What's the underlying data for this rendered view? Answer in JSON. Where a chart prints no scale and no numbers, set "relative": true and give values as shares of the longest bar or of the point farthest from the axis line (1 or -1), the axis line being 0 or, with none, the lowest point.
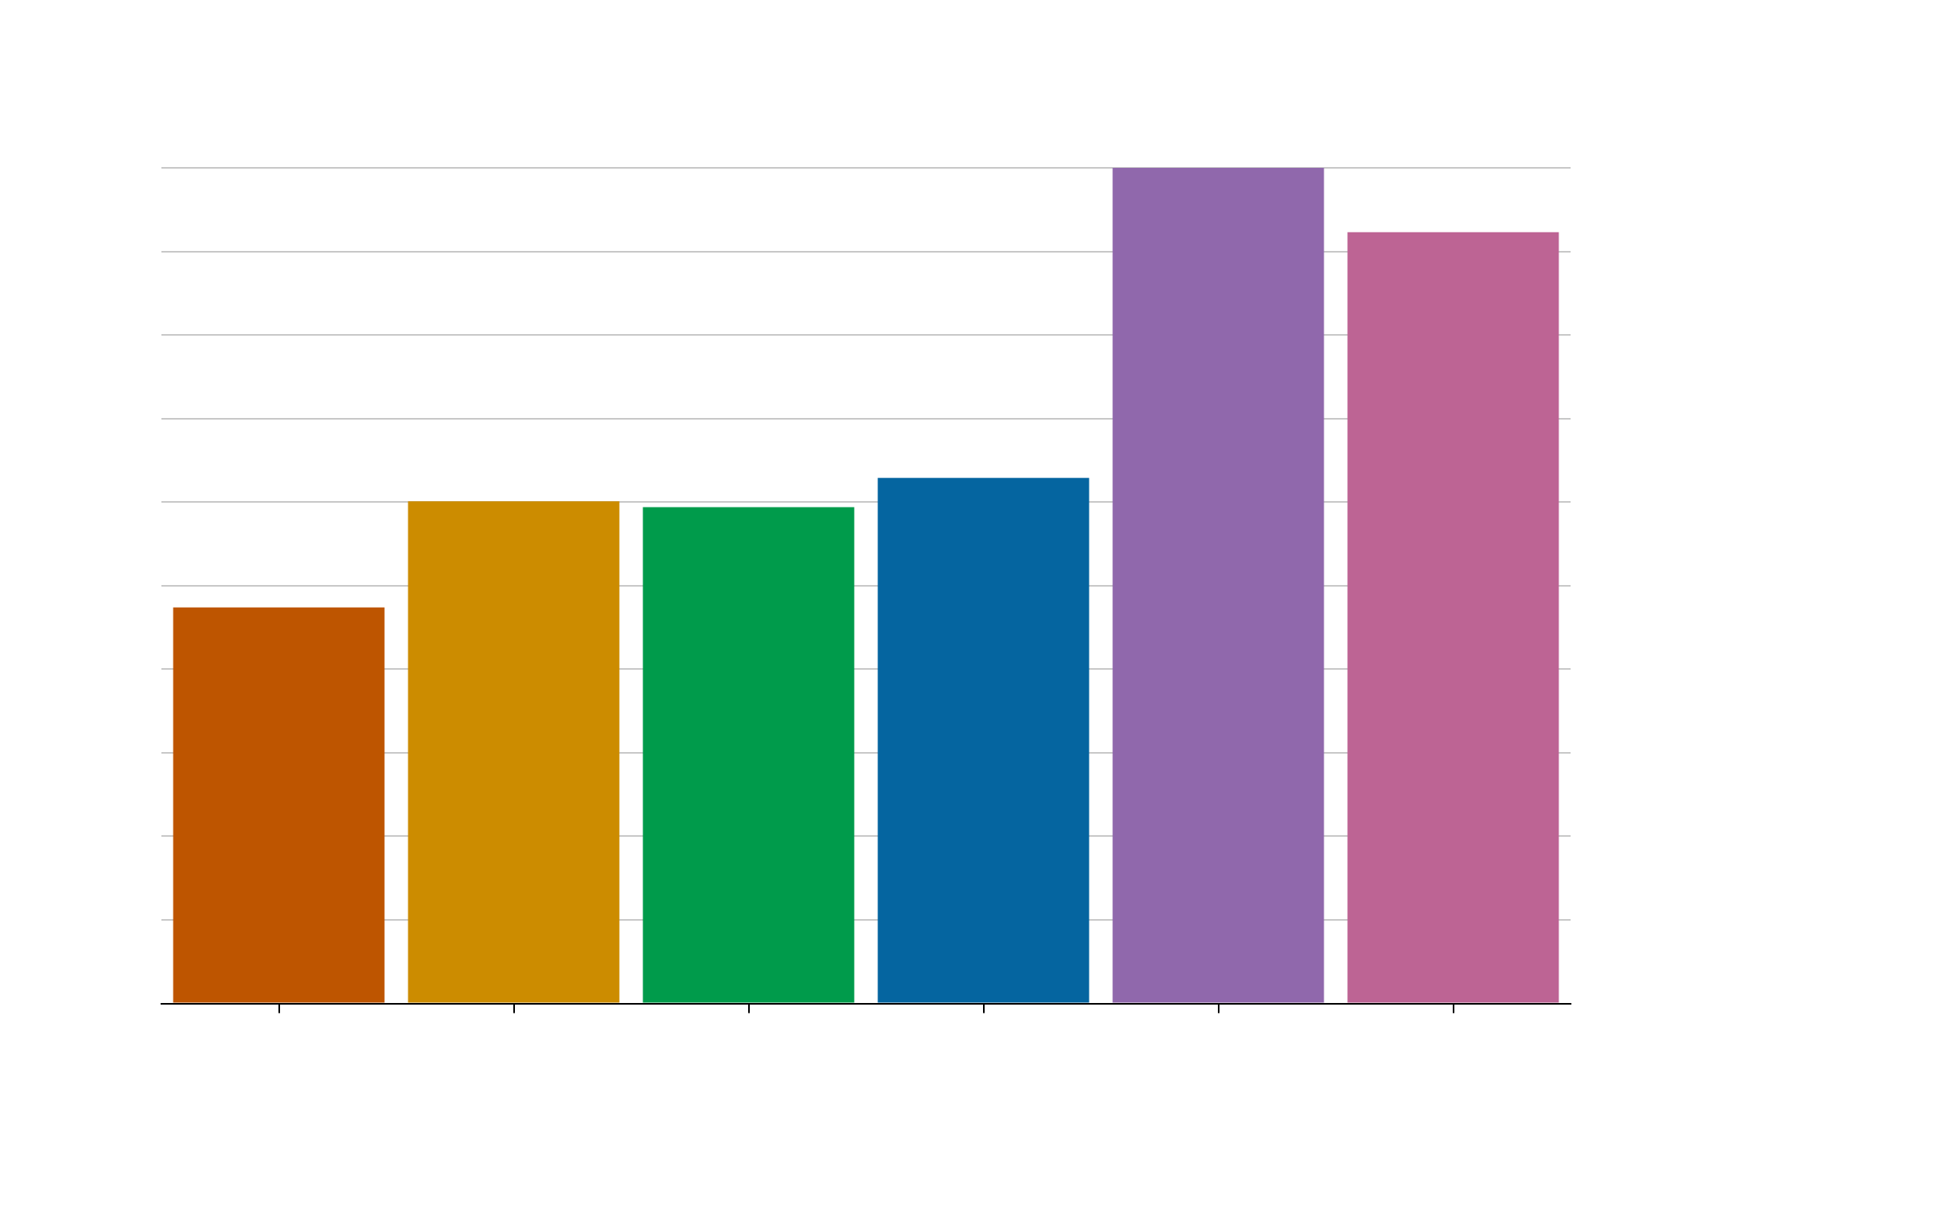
{
  "chart_data": {
    "type": "bar",
    "relative": true,
    "categories": [
      null,
      null,
      null,
      null,
      null,
      null
    ],
    "values": [
      0.474,
      0.601,
      0.594,
      0.629,
      1,
      0.923
    ],
    "colors": [
      "#be5500",
      "#cc8c00",
      "#009b4b",
      "#0565a0",
      "#9068ac",
      "#bd6494"
    ],
    "grid": "y",
    "legend": false
  }
}
